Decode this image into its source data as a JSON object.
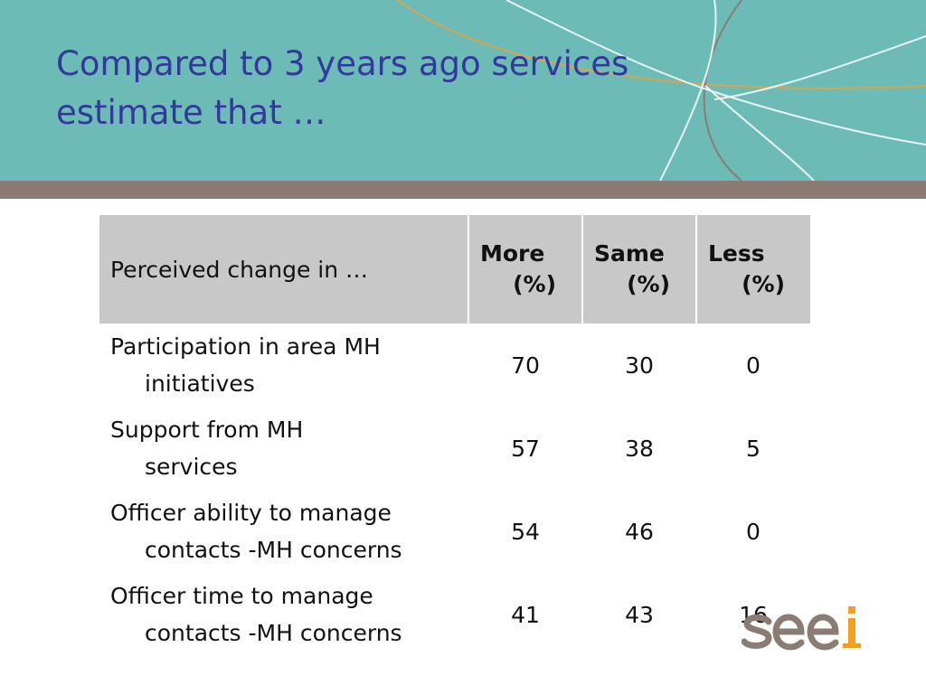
{
  "slide": {
    "title": "Compared to 3 years ago services estimate that …"
  },
  "table": {
    "columns": [
      {
        "line1": "Perceived change in …"
      },
      {
        "line1": "More",
        "line2": "(%)"
      },
      {
        "line1": "Same",
        "line2": "(%)"
      },
      {
        "line1": "Less",
        "line2": "(%)"
      }
    ],
    "rows": [
      {
        "label_line1": "Participation in area MH",
        "label_line2": "initiatives",
        "more": "70",
        "same": "30",
        "less": "0"
      },
      {
        "label_line1": "Support from MH",
        "label_line2": "services",
        "more": "57",
        "same": "38",
        "less": "5"
      },
      {
        "label_line1": "Officer ability to manage",
        "label_line2": "contacts -MH concerns",
        "more": "54",
        "same": "46",
        "less": "0"
      },
      {
        "label_line1": "Officer time to manage",
        "label_line2": "contacts -MH concerns",
        "more": "41",
        "same": "43",
        "less": "16"
      }
    ]
  },
  "logo": {
    "text": "seei"
  },
  "colors": {
    "header_bg": "#6dbbb6",
    "band": "#8b7b73",
    "title": "#33399b",
    "table_header_bg": "#c8c8c8",
    "logo_grey": "#8a7c74",
    "logo_orange": "#f0a020"
  }
}
